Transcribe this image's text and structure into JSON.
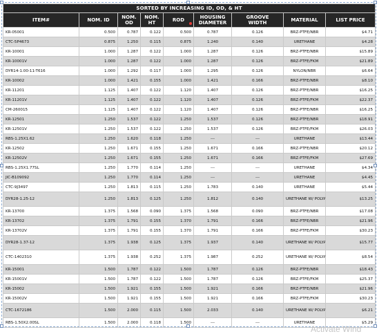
{
  "table": {
    "banner": "SORTED BY INCREASING ID, OD, & HT",
    "headers": [
      {
        "l1": "ITEM#",
        "l2": ""
      },
      {
        "l1": "NOM. ID",
        "l2": ""
      },
      {
        "l1": "NOM.",
        "l2": "OD"
      },
      {
        "l1": "NOM.",
        "l2": "HT"
      },
      {
        "l1": "ROD",
        "l2": ""
      },
      {
        "l1": "HOUSING",
        "l2": "DIAMETER"
      },
      {
        "l1": "GROOVE",
        "l2": "WIDTH"
      },
      {
        "l1": "MATERIAL",
        "l2": ""
      },
      {
        "l1": "LIST PRICE",
        "l2": ""
      }
    ],
    "rows": [
      {
        "item": "KR-05001",
        "id": "0.500",
        "od": "0.787",
        "ht": "0.122",
        "rod": "0.500",
        "housing": "0.787",
        "groove": "0.126",
        "material": "BRZ-PTFE/NBR",
        "price": "$4.71"
      },
      {
        "item": "CTC-5P4673",
        "id": "0.875",
        "od": "1.250",
        "ht": "0.115",
        "rod": "0.875",
        "housing": "1.240",
        "groove": "0.140",
        "material": "URETHANE",
        "price": "$4.28"
      },
      {
        "item": "KR-10001",
        "id": "1.000",
        "od": "1.287",
        "ht": "0.122",
        "rod": "1.000",
        "housing": "1.287",
        "groove": "0.126",
        "material": "BRZ-PTFE/NBR",
        "price": "$15.89"
      },
      {
        "item": "KR-10001V",
        "id": "1.000",
        "od": "1.287",
        "ht": "0.122",
        "rod": "1.000",
        "housing": "1.287",
        "groove": "0.126",
        "material": "BRZ-PTFE/FKM",
        "price": "$21.89"
      },
      {
        "item": "DYR14-1.00-11-T616",
        "id": "1.000",
        "od": "1.292",
        "ht": "0.117",
        "rod": "1.000",
        "housing": "1.295",
        "groove": "0.126",
        "material": "NYLON/NBR",
        "price": "$6.64"
      },
      {
        "item": "KR-10002",
        "id": "1.000",
        "od": "1.421",
        "ht": "0.155",
        "rod": "1.000",
        "housing": "1.421",
        "groove": "0.166",
        "material": "BRZ-PTFE/NBR",
        "price": "$8.10"
      },
      {
        "item": "KR-11201",
        "id": "1.125",
        "od": "1.407",
        "ht": "0.122",
        "rod": "1.120",
        "housing": "1.407",
        "groove": "0.126",
        "material": "BRZ-PTFE/NBR",
        "price": "$16.25"
      },
      {
        "item": "KR-11201V",
        "id": "1.125",
        "od": "1.407",
        "ht": "0.122",
        "rod": "1.120",
        "housing": "1.407",
        "groove": "0.126",
        "material": "BRZ-PTFE/FKM",
        "price": "$22.37"
      },
      {
        "item": "CM-260015",
        "id": "1.125",
        "od": "1.407",
        "ht": "0.122",
        "rod": "1.120",
        "housing": "1.407",
        "groove": "0.126",
        "material": "BRZ-PTFE/NBR",
        "price": "$16.25"
      },
      {
        "item": "KR-12501",
        "id": "1.250",
        "od": "1.537",
        "ht": "0.122",
        "rod": "1.250",
        "housing": "1.537",
        "groove": "0.126",
        "material": "BRZ-PTFE/NBR",
        "price": "$18.91"
      },
      {
        "item": "KR-12501V",
        "id": "1.250",
        "od": "1.537",
        "ht": "0.122",
        "rod": "1.250",
        "housing": "1.537",
        "groove": "0.126",
        "material": "BRZ-PTFE/FKM",
        "price": "$26.03"
      },
      {
        "item": "RBS-1.25X1.62",
        "id": "1.250",
        "od": "1.620",
        "ht": "0.118",
        "rod": "1.250",
        "housing": "---",
        "groove": "---",
        "material": "URETHANE",
        "price": "$13.44"
      },
      {
        "item": "KR-12502",
        "id": "1.250",
        "od": "1.671",
        "ht": "0.155",
        "rod": "1.250",
        "housing": "1.671",
        "groove": "0.166",
        "material": "BRZ-PTFE/NBR",
        "price": "$20.12"
      },
      {
        "item": "KR-12502V",
        "id": "1.250",
        "od": "1.671",
        "ht": "0.155",
        "rod": "1.250",
        "housing": "1.671",
        "groove": "0.166",
        "material": "BRZ-PTFE/FKM",
        "price": "$27.69"
      },
      {
        "item": "RBS-1.25X1.77SL",
        "id": "1.250",
        "od": "1.770",
        "ht": "0.114",
        "rod": "1.250",
        "housing": "---",
        "groove": "---",
        "material": "URETHANE",
        "price": "$4.34"
      },
      {
        "item": "JIC-B109092",
        "id": "1.250",
        "od": "1.770",
        "ht": "0.114",
        "rod": "1.250",
        "housing": "---",
        "groove": "---",
        "material": "URETHANE",
        "price": "$4.45"
      },
      {
        "item": "CTC-9J3497",
        "id": "1.250",
        "od": "1.813",
        "ht": "0.115",
        "rod": "1.250",
        "housing": "1.783",
        "groove": "0.140",
        "material": "URETHANE",
        "price": "$5.44"
      },
      {
        "item": "DYR28-1.25-12",
        "id": "1.250",
        "od": "1.813",
        "ht": "0.125",
        "rod": "1.250",
        "housing": "1.812",
        "groove": "0.140",
        "material": "URETHANE W/ POLYACETAL",
        "price": "$13.25"
      },
      {
        "item": "KR-13700",
        "id": "1.375",
        "od": "1.568",
        "ht": "0.090",
        "rod": "1.375",
        "housing": "1.568",
        "groove": "0.090",
        "material": "BRZ-PTFE/NBR",
        "price": "$17.08"
      },
      {
        "item": "KR-13702",
        "id": "1.375",
        "od": "1.791",
        "ht": "0.155",
        "rod": "1.370",
        "housing": "1.791",
        "groove": "0.166",
        "material": "BRZ-PTFE/NBR",
        "price": "$21.96"
      },
      {
        "item": "KR-13702V",
        "id": "1.375",
        "od": "1.791",
        "ht": "0.155",
        "rod": "1.370",
        "housing": "1.791",
        "groove": "0.166",
        "material": "BRZ-PTFE/FKM",
        "price": "$30.23"
      },
      {
        "item": "DYR28-1.37-12",
        "id": "1.375",
        "od": "1.938",
        "ht": "0.125",
        "rod": "1.375",
        "housing": "1.937",
        "groove": "0.140",
        "material": "URETHANE W/ POLYACETAL",
        "price": "$15.77"
      },
      {
        "item": "CTC-1402310",
        "id": "1.375",
        "od": "1.938",
        "ht": "0.252",
        "rod": "1.375",
        "housing": "1.987",
        "groove": "0.252",
        "material": "URETHANE W/ POLYACETAL",
        "price": "$8.54"
      },
      {
        "item": "KR-15001",
        "id": "1.500",
        "od": "1.787",
        "ht": "0.122",
        "rod": "1.500",
        "housing": "1.787",
        "groove": "0.126",
        "material": "BRZ-PTFE/NBR",
        "price": "$18.43"
      },
      {
        "item": "KR-15001V",
        "id": "1.500",
        "od": "1.787",
        "ht": "0.122",
        "rod": "1.500",
        "housing": "1.787",
        "groove": "0.126",
        "material": "BRZ-PTFE/FKM",
        "price": "$25.37"
      },
      {
        "item": "KR-15002",
        "id": "1.500",
        "od": "1.921",
        "ht": "0.155",
        "rod": "1.500",
        "housing": "1.921",
        "groove": "0.166",
        "material": "BRZ-PTFE/NBR",
        "price": "$21.96"
      },
      {
        "item": "KR-15002V",
        "id": "1.500",
        "od": "1.921",
        "ht": "0.155",
        "rod": "1.500",
        "housing": "1.921",
        "groove": "0.166",
        "material": "BRZ-PTFE/FKM",
        "price": "$30.23"
      },
      {
        "item": "CTC-1672186",
        "id": "1.500",
        "od": "2.000",
        "ht": "0.115",
        "rod": "1.500",
        "housing": "2.033",
        "groove": "0.140",
        "material": "URETHANE W/ POLYACETAL",
        "price": "$6.21"
      },
      {
        "item": "RBS-1.50X2.00SL",
        "id": "1.500",
        "od": "2.000",
        "ht": "0.118",
        "rod": "1.500",
        "housing": "---",
        "groove": "---",
        "material": "URETHANE",
        "price": "$5.29"
      }
    ]
  },
  "watermark": "Activate Wind"
}
